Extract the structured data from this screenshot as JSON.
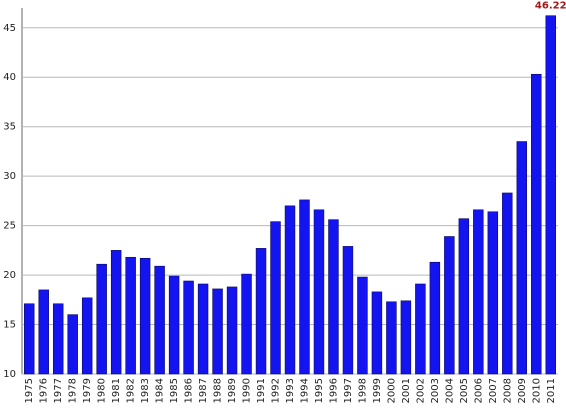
{
  "chart_data": {
    "type": "bar",
    "categories": [
      "1975",
      "1976",
      "1977",
      "1978",
      "1979",
      "1980",
      "1981",
      "1982",
      "1983",
      "1984",
      "1985",
      "1986",
      "1987",
      "1988",
      "1989",
      "1990",
      "1991",
      "1992",
      "1993",
      "1994",
      "1995",
      "1996",
      "1997",
      "1998",
      "1999",
      "2000",
      "2001",
      "2002",
      "2003",
      "2004",
      "2005",
      "2006",
      "2007",
      "2008",
      "2009",
      "2010",
      "2011"
    ],
    "values": [
      17.1,
      18.5,
      17.1,
      16.0,
      17.7,
      21.1,
      22.5,
      21.8,
      21.7,
      20.9,
      19.9,
      19.4,
      19.1,
      18.6,
      18.8,
      20.1,
      22.7,
      25.4,
      27.0,
      27.6,
      26.6,
      25.6,
      22.9,
      19.8,
      18.3,
      17.3,
      17.4,
      19.1,
      21.3,
      23.9,
      25.7,
      26.6,
      26.4,
      28.3,
      33.5,
      40.3,
      46.22
    ],
    "value_labels": [
      null,
      null,
      null,
      null,
      null,
      null,
      null,
      null,
      null,
      null,
      null,
      null,
      null,
      null,
      null,
      null,
      null,
      null,
      null,
      null,
      null,
      null,
      null,
      null,
      null,
      null,
      null,
      null,
      null,
      null,
      null,
      null,
      null,
      null,
      null,
      null,
      "46.22"
    ],
    "color": "#1414f0",
    "label_color": "#a01818",
    "ylim": [
      10,
      47
    ],
    "yticks": [
      10,
      15,
      20,
      25,
      30,
      35,
      40,
      45
    ],
    "grid": true
  }
}
